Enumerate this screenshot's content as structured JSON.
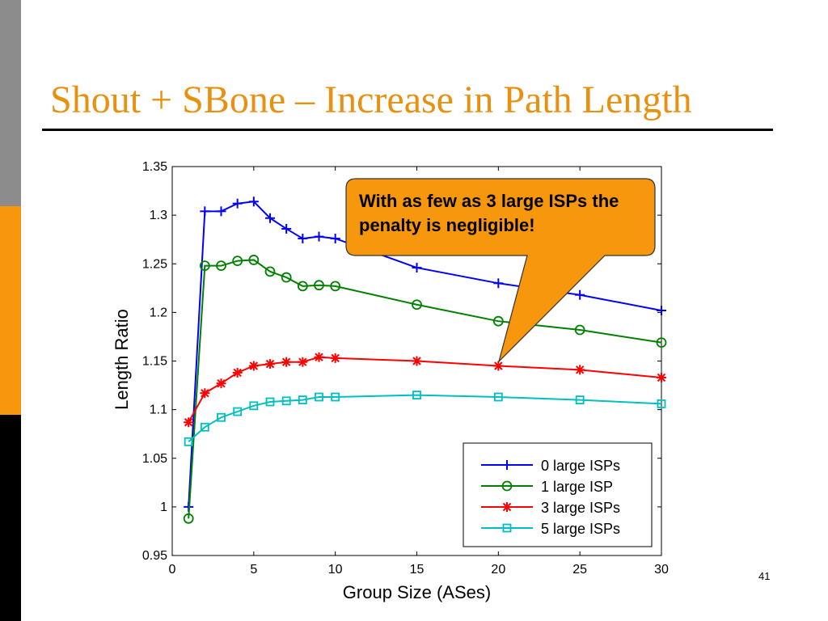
{
  "slide": {
    "title": "Shout + SBone – Increase in Path Length",
    "page_number": "41",
    "callout": "With as few as 3 large ISPs the penalty is negligible!"
  },
  "colors": {
    "title": "#e8900f",
    "callout_fill": "#f7970d",
    "sidebar_gray": "#8c8c8c",
    "sidebar_orange": "#f7970d",
    "sidebar_black": "#000000"
  },
  "chart_data": {
    "type": "line",
    "title": "",
    "xlabel": "Group Size (ASes)",
    "ylabel": "Length Ratio",
    "xlim": [
      0,
      30
    ],
    "ylim": [
      0.95,
      1.35
    ],
    "x_ticks": [
      0,
      5,
      10,
      15,
      20,
      25,
      30
    ],
    "y_ticks": [
      0.95,
      1,
      1.05,
      1.1,
      1.15,
      1.2,
      1.25,
      1.3,
      1.35
    ],
    "y_tick_labels": [
      "0.95",
      "1",
      "1.05",
      "1.1",
      "1.15",
      "1.2",
      "1.25",
      "1.3",
      "1.35"
    ],
    "grid": false,
    "legend_position": "bottom-right",
    "x": [
      1,
      2,
      3,
      4,
      5,
      6,
      7,
      8,
      9,
      10,
      15,
      20,
      25,
      30
    ],
    "series": [
      {
        "name": "0 large ISPs",
        "color": "#0000ff",
        "marker": "plus",
        "values": [
          1.0,
          1.304,
          1.304,
          1.312,
          1.314,
          1.297,
          1.286,
          1.276,
          1.278,
          1.276,
          1.246,
          1.23,
          1.218,
          1.202
        ]
      },
      {
        "name": "1 large ISP",
        "color": "#008000",
        "marker": "circle",
        "values": [
          0.988,
          1.248,
          1.248,
          1.253,
          1.254,
          1.242,
          1.236,
          1.227,
          1.228,
          1.227,
          1.208,
          1.191,
          1.182,
          1.169
        ]
      },
      {
        "name": "3 large ISPs",
        "color": "#ff0000",
        "marker": "star",
        "values": [
          1.087,
          1.117,
          1.127,
          1.138,
          1.145,
          1.147,
          1.149,
          1.149,
          1.154,
          1.153,
          1.15,
          1.145,
          1.141,
          1.133
        ]
      },
      {
        "name": "5 large ISPs",
        "color": "#00bfbf",
        "marker": "square",
        "values": [
          1.067,
          1.082,
          1.092,
          1.098,
          1.104,
          1.108,
          1.109,
          1.11,
          1.113,
          1.113,
          1.115,
          1.113,
          1.11,
          1.106
        ]
      }
    ]
  }
}
